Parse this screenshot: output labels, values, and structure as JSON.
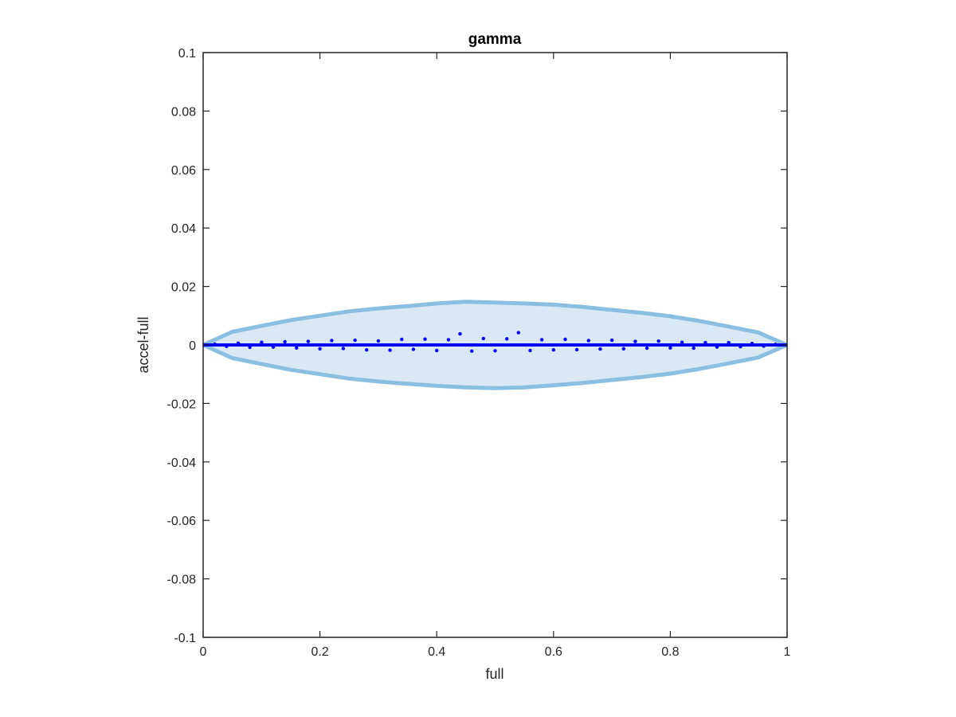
{
  "chart_data": {
    "type": "scatter",
    "title": "gamma",
    "xlabel": "full",
    "ylabel": "accel-full",
    "xlim": [
      0,
      1
    ],
    "ylim": [
      -0.1,
      0.1
    ],
    "x_ticks": [
      0,
      0.2,
      0.4,
      0.6,
      0.8,
      1
    ],
    "x_tick_labels": [
      "0",
      "0.2",
      "0.4",
      "0.6",
      "0.8",
      "1"
    ],
    "y_ticks": [
      -0.1,
      -0.08,
      -0.06,
      -0.04,
      -0.02,
      0,
      0.02,
      0.04,
      0.06,
      0.08,
      0.1
    ],
    "y_tick_labels": [
      "-0.1",
      "-0.08",
      "-0.06",
      "-0.04",
      "-0.02",
      "0",
      "0.02",
      "0.04",
      "0.06",
      "0.08",
      "0.1"
    ],
    "grid": false,
    "band": {
      "description": "envelope of differences, symmetric about 0",
      "x": [
        0,
        0.05,
        0.1,
        0.15,
        0.2,
        0.25,
        0.3,
        0.35,
        0.4,
        0.45,
        0.5,
        0.55,
        0.6,
        0.65,
        0.7,
        0.75,
        0.8,
        0.85,
        0.9,
        0.95,
        1
      ],
      "upper": [
        0,
        0.0045,
        0.0065,
        0.0085,
        0.01,
        0.0115,
        0.0125,
        0.0133,
        0.0142,
        0.0148,
        0.0145,
        0.0142,
        0.0138,
        0.013,
        0.012,
        0.011,
        0.0098,
        0.0082,
        0.0063,
        0.0043,
        0
      ],
      "lower": [
        0,
        -0.0045,
        -0.0065,
        -0.0085,
        -0.01,
        -0.0115,
        -0.0125,
        -0.0133,
        -0.014,
        -0.0145,
        -0.0148,
        -0.0145,
        -0.0138,
        -0.013,
        -0.012,
        -0.011,
        -0.0098,
        -0.0082,
        -0.0063,
        -0.0043,
        0
      ],
      "fill_color": "#d8e8f5",
      "edge_color": "#8bbfe1"
    },
    "points": {
      "description": "scatter of accel-full vs full, concentrated near 0",
      "x": [
        0.02,
        0.04,
        0.06,
        0.08,
        0.1,
        0.12,
        0.14,
        0.16,
        0.18,
        0.2,
        0.22,
        0.24,
        0.26,
        0.28,
        0.3,
        0.32,
        0.34,
        0.36,
        0.38,
        0.4,
        0.42,
        0.44,
        0.46,
        0.48,
        0.5,
        0.52,
        0.54,
        0.56,
        0.58,
        0.6,
        0.62,
        0.64,
        0.66,
        0.68,
        0.7,
        0.72,
        0.74,
        0.76,
        0.78,
        0.8,
        0.82,
        0.84,
        0.86,
        0.88,
        0.9,
        0.92,
        0.94,
        0.96,
        0.98
      ],
      "y": [
        0.0003,
        -0.0005,
        0.0006,
        -0.0008,
        0.0009,
        -0.0007,
        0.0011,
        -0.001,
        0.0012,
        -0.0013,
        0.0015,
        -0.0012,
        0.0016,
        -0.0017,
        0.0014,
        -0.0018,
        0.0019,
        -0.0015,
        0.002,
        -0.0019,
        0.0018,
        0.0038,
        -0.0021,
        0.0022,
        -0.002,
        0.0021,
        0.0042,
        -0.0019,
        0.0018,
        -0.0017,
        0.0019,
        -0.0016,
        0.0015,
        -0.0014,
        0.0016,
        -0.0013,
        0.0012,
        -0.0011,
        0.0013,
        -0.001,
        0.0009,
        -0.0011,
        0.0008,
        -0.0007,
        0.0008,
        -0.0006,
        0.0005,
        -0.0004,
        0.0002
      ],
      "color": "#0000ff"
    }
  }
}
